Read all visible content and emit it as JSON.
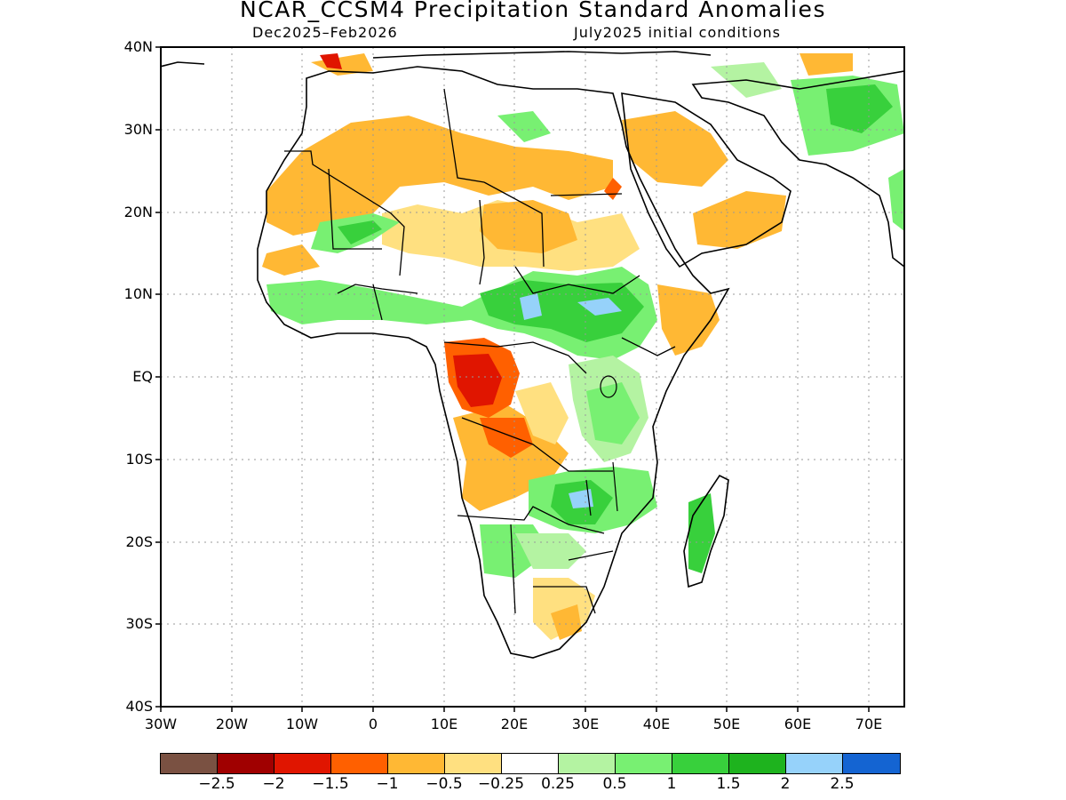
{
  "title": "NCAR_CCSM4 Precipitation Standard Anomalies",
  "subtitle_left": "Dec2025–Feb2026",
  "subtitle_right": "July2025 initial conditions",
  "axes": {
    "lat_labels": [
      "40N",
      "30N",
      "20N",
      "10N",
      "EQ",
      "10S",
      "20S",
      "30S",
      "40S"
    ],
    "lon_labels": [
      "30W",
      "20W",
      "10W",
      "0",
      "10E",
      "20E",
      "30E",
      "40E",
      "50E",
      "60E",
      "70E"
    ],
    "lat_range": [
      -40,
      40
    ],
    "lon_range": [
      -30,
      75
    ],
    "grid": "dotted"
  },
  "colorbar": {
    "colors": [
      "#7a5142",
      "#a00000",
      "#e01500",
      "#ff6000",
      "#ffb834",
      "#ffe080",
      "#ffffff",
      "#b4f3a2",
      "#78f072",
      "#38d03c",
      "#1eb31e",
      "#96d2fa",
      "#1464d2"
    ],
    "labels": [
      "−2.5",
      "−2",
      "−1.5",
      "−1",
      "−0.5",
      "−0.25",
      "0.25",
      "0.5",
      "1",
      "1.5",
      "2",
      "2.5"
    ]
  },
  "map": {
    "region": "Africa and Arabian Peninsula",
    "variable": "Precipitation standard anomalies"
  }
}
